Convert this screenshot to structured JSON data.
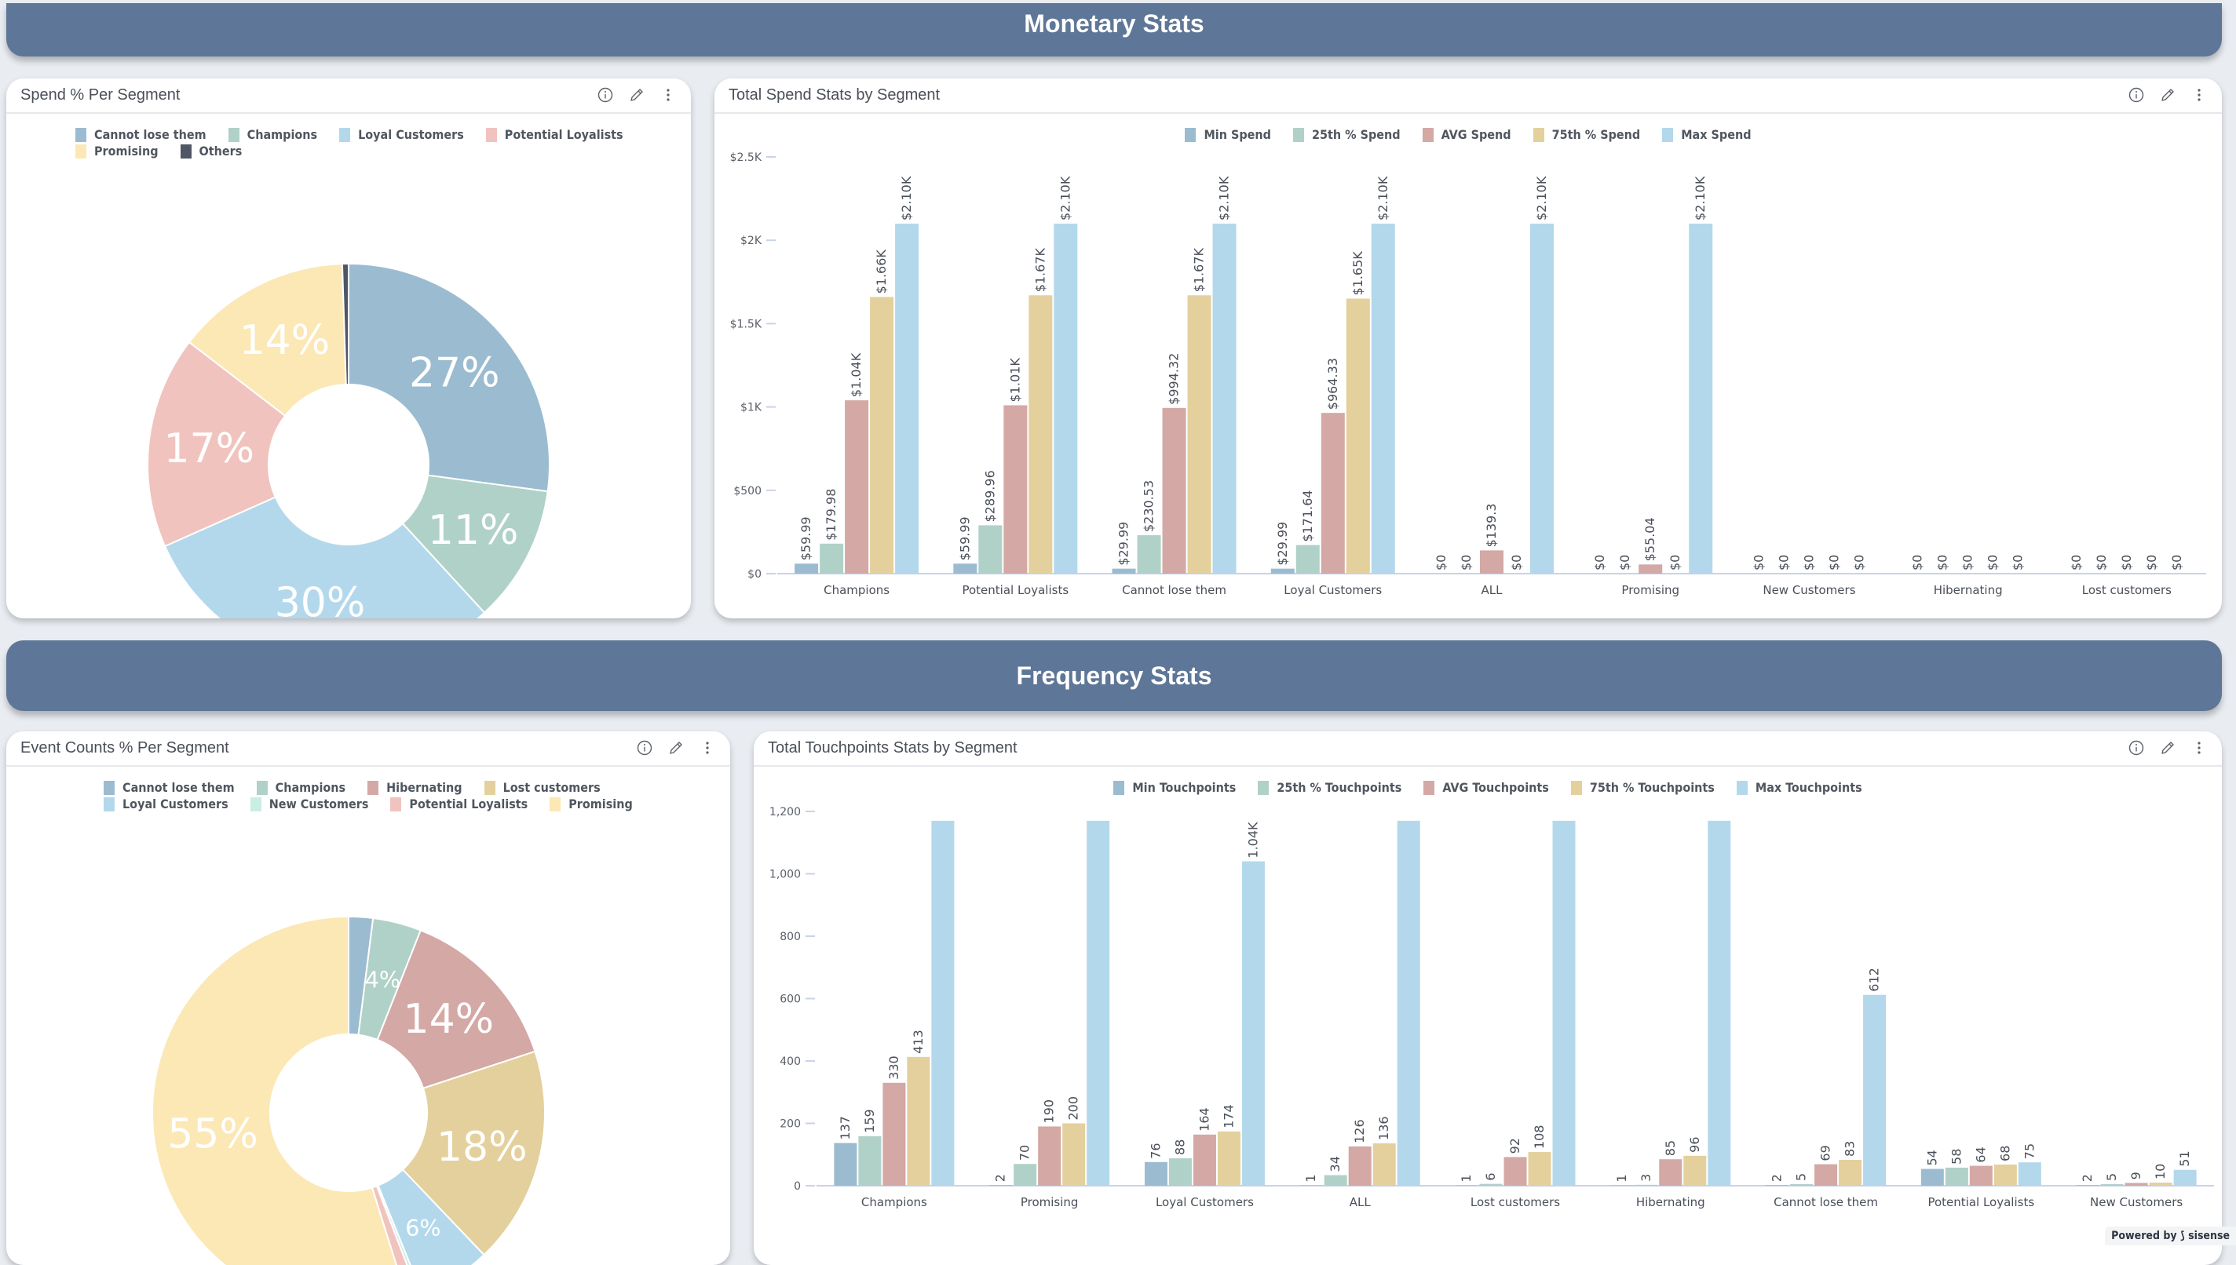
{
  "sections": {
    "monetary": "Monetary Stats",
    "frequency": "Frequency Stats"
  },
  "panels": {
    "spend_pie": {
      "title": "Spend % Per Segment"
    },
    "spend_bar": {
      "title": "Total Spend Stats by Segment"
    },
    "events_pie": {
      "title": "Event Counts % Per Segment"
    },
    "touch_bar": {
      "title": "Total Touchpoints Stats by Segment"
    }
  },
  "icons": {
    "info": "info-icon",
    "edit": "pencil-icon",
    "menu": "more-vertical-icon"
  },
  "footer": {
    "powered_by": "Powered by",
    "brand": "sisense"
  },
  "colors": {
    "header": "#5e7697",
    "series": [
      "#9bbcd0",
      "#b0d1c7",
      "#d3a8a5",
      "#e3d09c",
      "#b3d8ec"
    ]
  },
  "chart_data": [
    {
      "id": "spend_pie",
      "type": "pie",
      "title": "Spend % Per Segment",
      "donut": true,
      "legend": [
        "Cannot lose them",
        "Champions",
        "Loyal Customers",
        "Potential Loyalists",
        "Promising",
        "Others"
      ],
      "legend_colors": [
        "#9bbcd0",
        "#b0d1c7",
        "#b3d8ec",
        "#f1c3be",
        "#fbe8b5",
        "#4f5666"
      ],
      "slices": [
        {
          "label": "Cannot lose them",
          "value": 27,
          "text": "27%",
          "color": "#9bbcd0"
        },
        {
          "label": "Champions",
          "value": 11,
          "text": "11%",
          "color": "#b0d1c7"
        },
        {
          "label": "Loyal Customers",
          "value": 30,
          "text": "30%",
          "color": "#b3d8ec"
        },
        {
          "label": "Potential Loyalists",
          "value": 17,
          "text": "17%",
          "color": "#f1c3be"
        },
        {
          "label": "Promising",
          "value": 14,
          "text": "14%",
          "color": "#fbe8b5"
        },
        {
          "label": "Others",
          "value": 0.5,
          "text": "",
          "color": "#4f5666"
        }
      ],
      "legend_placement": "top"
    },
    {
      "id": "spend_bar",
      "type": "bar",
      "title": "Total Spend Stats by Segment",
      "categories": [
        "Champions",
        "Potential Loyalists",
        "Cannot lose them",
        "Loyal Customers",
        "ALL",
        "Promising",
        "New Customers",
        "Hibernating",
        "Lost customers"
      ],
      "series": [
        {
          "name": "Min Spend",
          "values": [
            59.99,
            59.99,
            29.99,
            29.99,
            0,
            0,
            0,
            0,
            0
          ],
          "labels": [
            "$59.99",
            "$59.99",
            "$29.99",
            "$29.99",
            "$0",
            "$0",
            "$0",
            "$0",
            "$0"
          ]
        },
        {
          "name": "25th % Spend",
          "values": [
            179.98,
            289.96,
            230.53,
            171.64,
            0,
            0,
            0,
            0,
            0
          ],
          "labels": [
            "$179.98",
            "$289.96",
            "$230.53",
            "$171.64",
            "$0",
            "$0",
            "$0",
            "$0",
            "$0"
          ]
        },
        {
          "name": "AVG Spend",
          "values": [
            1040,
            1010,
            994.32,
            964.33,
            139.3,
            55.04,
            0,
            0,
            0
          ],
          "labels": [
            "$1.04K",
            "$1.01K",
            "$994.32",
            "$964.33",
            "$139.3",
            "$55.04",
            "$0",
            "$0",
            "$0"
          ]
        },
        {
          "name": "75th % Spend",
          "values": [
            1660,
            1670,
            1670,
            1650,
            0,
            0,
            0,
            0,
            0
          ],
          "labels": [
            "$1.66K",
            "$1.67K",
            "$1.67K",
            "$1.65K",
            "$0",
            "$0",
            "$0",
            "$0",
            "$0"
          ]
        },
        {
          "name": "Max Spend",
          "values": [
            2100,
            2100,
            2100,
            2100,
            2100,
            2100,
            0,
            0,
            0
          ],
          "labels": [
            "$2.10K",
            "$2.10K",
            "$2.10K",
            "$2.10K",
            "$2.10K",
            "$2.10K",
            "$0",
            "$0",
            "$0"
          ]
        }
      ],
      "yticks": [
        0,
        500,
        1000,
        1500,
        2000,
        2500
      ],
      "ytick_labels": [
        "$0",
        "$500",
        "$1K",
        "$1.5K",
        "$2K",
        "$2.5K"
      ],
      "ylim": [
        0,
        2500
      ],
      "xlabel": "",
      "ylabel": "",
      "legend_placement": "top",
      "grid": false
    },
    {
      "id": "events_pie",
      "type": "pie",
      "title": "Event Counts % Per Segment",
      "donut": true,
      "legend": [
        "Cannot lose them",
        "Champions",
        "Hibernating",
        "Lost customers",
        "Loyal Customers",
        "New Customers",
        "Potential Loyalists",
        "Promising"
      ],
      "legend_colors": [
        "#9bbcd0",
        "#b0d1c7",
        "#d3a8a5",
        "#e3d09c",
        "#b3d8ec",
        "#c9eee3",
        "#f1c3be",
        "#fbe8b5"
      ],
      "slices": [
        {
          "label": "Cannot lose them",
          "value": 2,
          "text": "",
          "color": "#9bbcd0"
        },
        {
          "label": "Champions",
          "value": 4,
          "text": "4%",
          "color": "#b0d1c7"
        },
        {
          "label": "Hibernating",
          "value": 14,
          "text": "14%",
          "color": "#d3a8a5"
        },
        {
          "label": "Lost customers",
          "value": 18,
          "text": "18%",
          "color": "#e3d09c"
        },
        {
          "label": "Loyal Customers",
          "value": 6,
          "text": "6%",
          "color": "#b3d8ec"
        },
        {
          "label": "New Customers",
          "value": 0.3,
          "text": "",
          "color": "#c9eee3"
        },
        {
          "label": "Potential Loyalists",
          "value": 1,
          "text": "",
          "color": "#f1c3be"
        },
        {
          "label": "Promising",
          "value": 55,
          "text": "55%",
          "color": "#fbe8b5"
        }
      ],
      "legend_placement": "top"
    },
    {
      "id": "touch_bar",
      "type": "bar",
      "title": "Total Touchpoints Stats by Segment",
      "categories": [
        "Champions",
        "Promising",
        "Loyal Customers",
        "ALL",
        "Lost customers",
        "Hibernating",
        "Cannot lose them",
        "Potential Loyalists",
        "New Customers"
      ],
      "series": [
        {
          "name": "Min Touchpoints",
          "values": [
            137,
            2,
            76,
            1,
            1,
            1,
            2,
            54,
            2
          ],
          "labels": [
            "137",
            "2",
            "76",
            "1",
            "1",
            "1",
            "2",
            "54",
            "2"
          ]
        },
        {
          "name": "25th % Touchpoints",
          "values": [
            159,
            70,
            88,
            34,
            6,
            3,
            5,
            58,
            5
          ],
          "labels": [
            "159",
            "70",
            "88",
            "34",
            "6",
            "3",
            "5",
            "58",
            "5"
          ]
        },
        {
          "name": "AVG Touchpoints",
          "values": [
            330,
            190,
            164,
            126,
            92,
            85,
            69,
            64,
            9
          ],
          "labels": [
            "330",
            "190",
            "164",
            "126",
            "92",
            "85",
            "69",
            "64",
            "9"
          ]
        },
        {
          "name": "75th % Touchpoints",
          "values": [
            413,
            200,
            174,
            136,
            108,
            96,
            83,
            68,
            10
          ],
          "labels": [
            "413",
            "200",
            "174",
            "136",
            "108",
            "96",
            "83",
            "68",
            "10"
          ]
        },
        {
          "name": "Max Touchpoints",
          "values": [
            1300,
            1300,
            1040,
            1300,
            1300,
            1300,
            612,
            75,
            51
          ],
          "labels": [
            "",
            "",
            "1.04K",
            "",
            "",
            "",
            "612",
            "75",
            "51"
          ]
        }
      ],
      "yticks": [
        0,
        200,
        400,
        600,
        800,
        1000,
        1200
      ],
      "ytick_labels": [
        "0",
        "200",
        "400",
        "600",
        "800",
        "1,000",
        "1,200"
      ],
      "ylim": [
        0,
        1200
      ],
      "xlabel": "",
      "ylabel": "",
      "legend_placement": "top",
      "grid": false
    }
  ]
}
